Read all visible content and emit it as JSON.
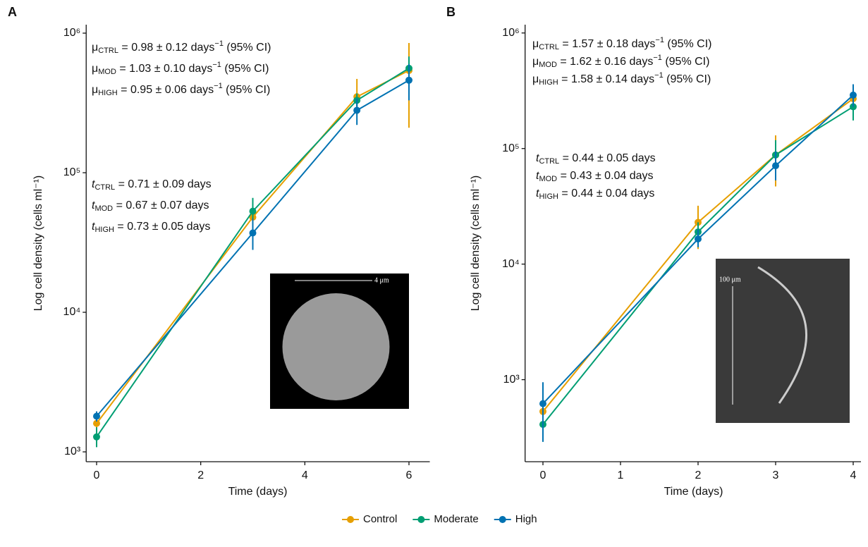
{
  "chart_data": [
    {
      "type": "line",
      "panel": "A",
      "x_label": "Time (days)",
      "y_label": "Log cell density (cells ml⁻¹)",
      "log_y": true,
      "x": [
        0,
        3,
        5,
        6
      ],
      "xlim": [
        -0.2,
        6.4
      ],
      "xticks": [
        0,
        2,
        4,
        6
      ],
      "ylim": [
        850,
        1150000
      ],
      "yticks": [
        {
          "value": 1000,
          "label": "10³"
        },
        {
          "value": 10000,
          "label": "10⁴"
        },
        {
          "value": 100000,
          "label": "10⁵"
        },
        {
          "value": 1000000,
          "label": "10⁶"
        }
      ],
      "series": [
        {
          "name": "Control",
          "color": "#E69F00",
          "values": [
            1600,
            48000,
            350000,
            540000
          ],
          "lower": [
            1350,
            40000,
            260000,
            210000
          ],
          "upper": [
            1900,
            57000,
            470000,
            850000
          ]
        },
        {
          "name": "Moderate",
          "color": "#009E73",
          "values": [
            1280,
            53000,
            330000,
            560000
          ],
          "lower": [
            1080,
            42000,
            300000,
            460000
          ],
          "upper": [
            1500,
            66000,
            370000,
            680000
          ]
        },
        {
          "name": "High",
          "color": "#0072B2",
          "values": [
            1800,
            37000,
            280000,
            460000
          ],
          "lower": [
            1650,
            28000,
            220000,
            330000
          ],
          "upper": [
            1950,
            47000,
            340000,
            600000
          ]
        }
      ],
      "annotations": [
        {
          "symbol": "μ",
          "sub": "CTRL",
          "text": " = 0.98 ± 0.12 days",
          "sup": "−1",
          "suffix": " (95% CI)"
        },
        {
          "symbol": "μ",
          "sub": "MOD",
          "text": " = 1.03 ± 0.10 days",
          "sup": "−1",
          "suffix": " (95% CI)"
        },
        {
          "symbol": "μ",
          "sub": "HIGH",
          "text": " = 0.95 ± 0.06 days",
          "sup": "−1",
          "suffix": " (95% CI)"
        },
        {
          "symbol": "t",
          "sub": "CTRL",
          "text": " = 0.71 ± 0.09 days"
        },
        {
          "symbol": "t",
          "sub": "MOD",
          "text": " = 0.67 ± 0.07 days"
        },
        {
          "symbol": "t",
          "sub": "HIGH",
          "text": " = 0.73 ± 0.05 days"
        }
      ],
      "inset_scale": "4 μm"
    },
    {
      "type": "line",
      "panel": "B",
      "x_label": "Time (days)",
      "y_label": "Log cell density (cells ml⁻¹)",
      "log_y": true,
      "x": [
        0,
        2,
        3,
        4
      ],
      "xlim": [
        -0.23,
        4.1
      ],
      "xticks": [
        0,
        1,
        2,
        3,
        4
      ],
      "ylim": [
        195,
        1180000
      ],
      "yticks": [
        {
          "value": 1000,
          "label": "10³"
        },
        {
          "value": 10000,
          "label": "10⁴"
        },
        {
          "value": 100000,
          "label": "10⁵"
        },
        {
          "value": 1000000,
          "label": "10⁶"
        }
      ],
      "series": [
        {
          "color": "#E69F00",
          "values": [
            530,
            23000,
            88000,
            270000
          ],
          "lower": [
            470,
            13500,
            47000,
            230000
          ],
          "upper": [
            600,
            32000,
            130000,
            320000
          ]
        },
        {
          "color": "#009E73",
          "values": [
            410,
            19000,
            88000,
            230000
          ],
          "lower": [
            290,
            16000,
            60000,
            175000
          ],
          "upper": [
            560,
            23000,
            118000,
            300000
          ]
        },
        {
          "color": "#0072B2",
          "values": [
            620,
            16500,
            71000,
            290000
          ],
          "lower": [
            290,
            14000,
            53000,
            230000
          ],
          "upper": [
            950,
            20000,
            95000,
            360000
          ]
        }
      ],
      "annotations": [
        {
          "symbol": "μ",
          "sub": "CTRL",
          "text": " = 1.57 ± 0.18 days",
          "sup": "−1",
          "suffix": " (95% CI)"
        },
        {
          "symbol": "μ",
          "sub": "MOD",
          "text": " = 1.62 ± 0.16 days",
          "sup": "−1",
          "suffix": " (95% CI)"
        },
        {
          "symbol": "μ",
          "sub": "HIGH",
          "text": " = 1.58 ± 0.14 days",
          "sup": "−1",
          "suffix": " (95% CI)"
        },
        {
          "symbol": "t",
          "sub": "CTRL",
          "text": " = 0.44 ± 0.05 days"
        },
        {
          "symbol": "t",
          "sub": "MOD",
          "text": " = 0.43 ± 0.04 days"
        },
        {
          "symbol": "t",
          "sub": "HIGH",
          "text": " = 0.44 ± 0.04 days"
        }
      ],
      "inset_scale": "100 μm"
    }
  ]
}
